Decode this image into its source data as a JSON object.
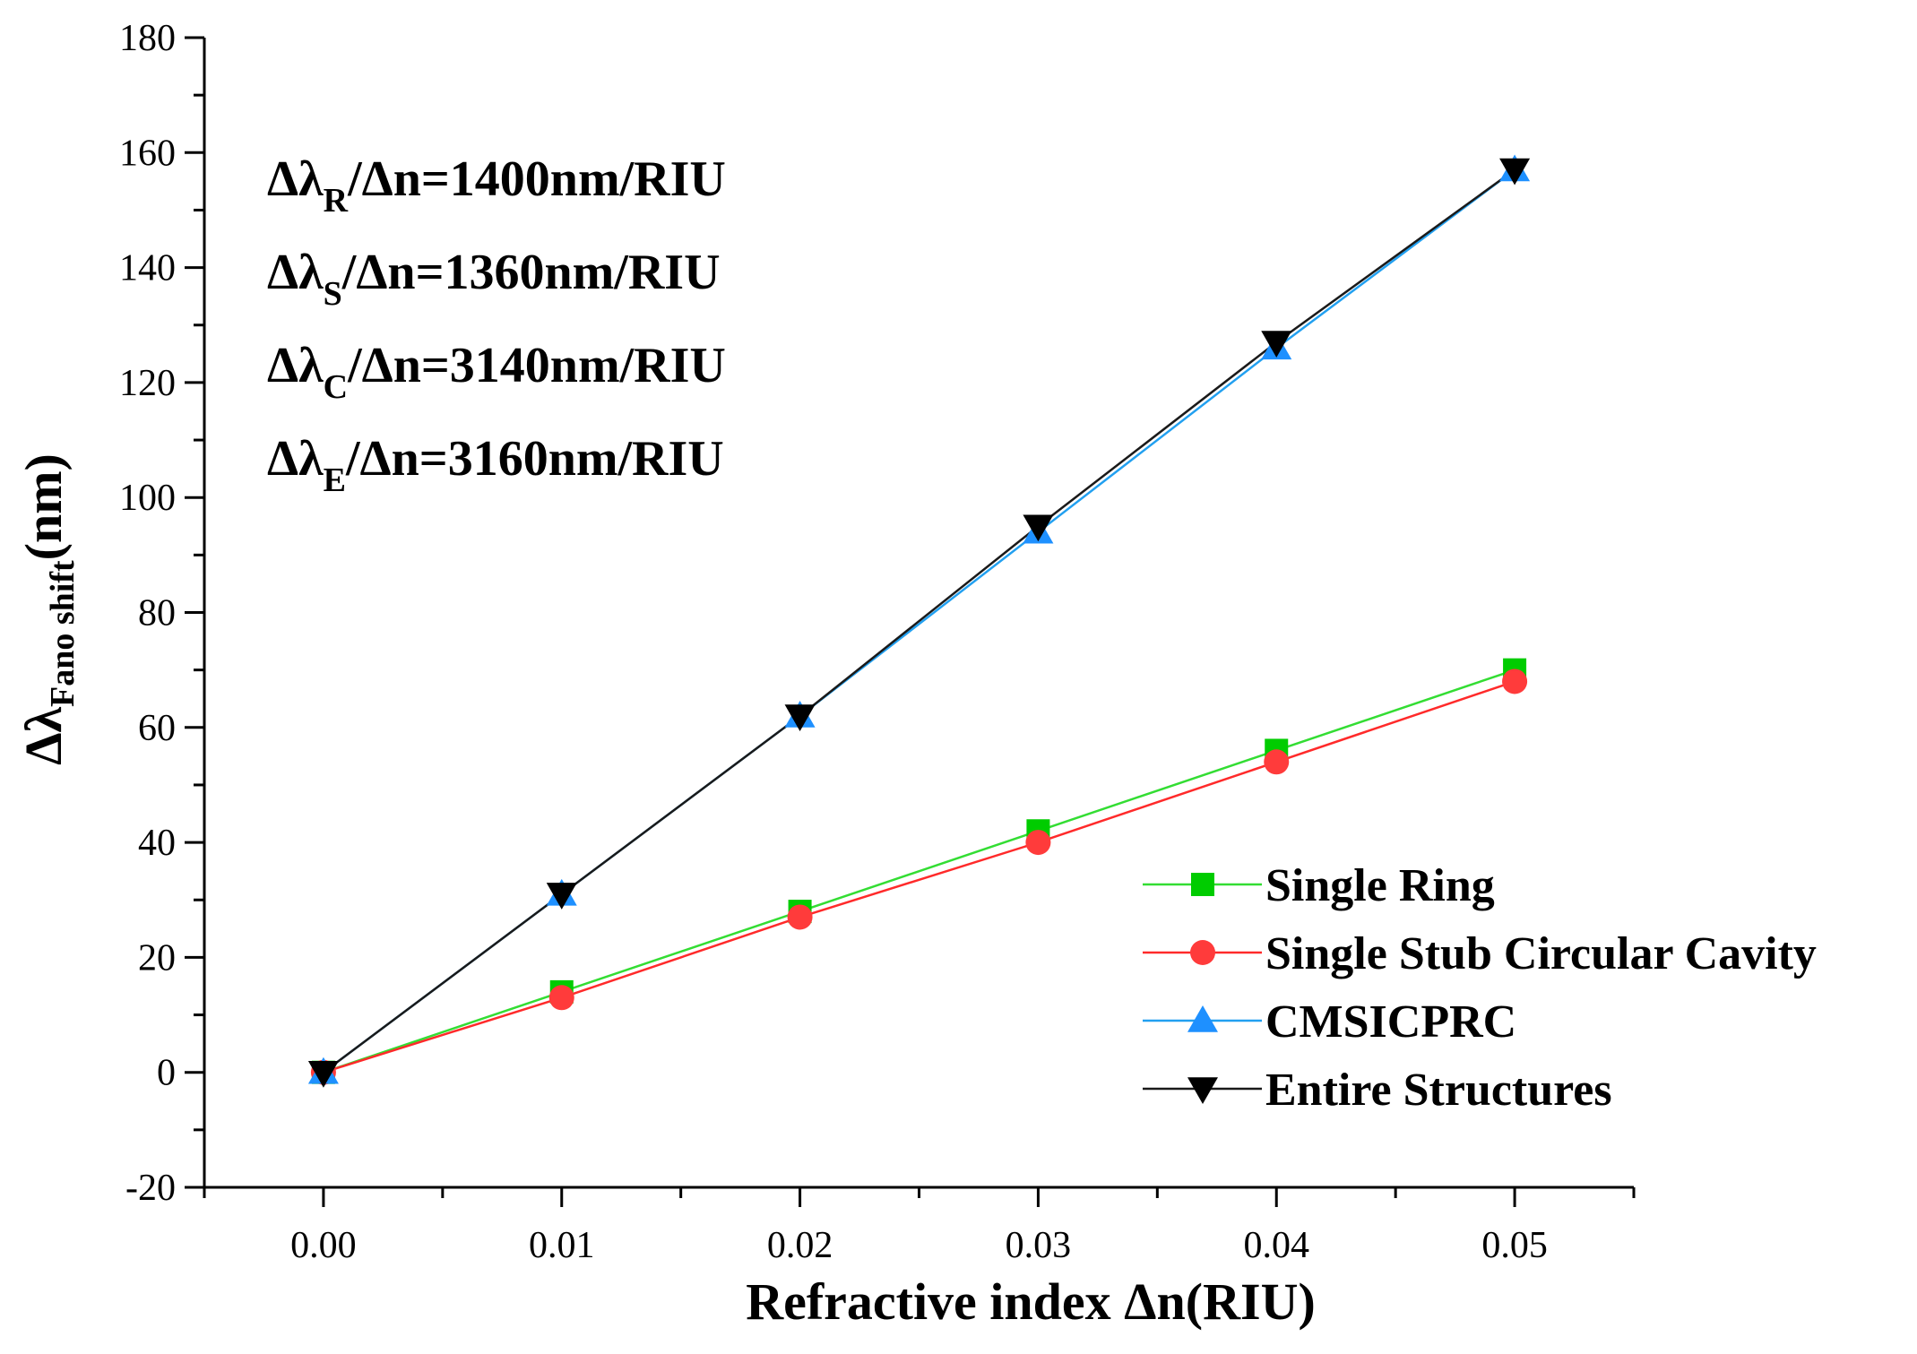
{
  "chart_data": {
    "type": "line",
    "title": "",
    "xlabel": "Refractive index Δn(RIU)",
    "ylabel": {
      "main": "Δλ",
      "sub": "Fano shift",
      "unit": "(nm)"
    },
    "xlim": [
      -0.005,
      0.055
    ],
    "ylim": [
      -20,
      180
    ],
    "x_ticks": [
      0.0,
      0.01,
      0.02,
      0.03,
      0.04,
      0.05
    ],
    "x_tick_labels": [
      "0.00",
      "0.01",
      "0.02",
      "0.03",
      "0.04",
      "0.05"
    ],
    "y_ticks": [
      -20,
      0,
      20,
      40,
      60,
      80,
      100,
      120,
      140,
      160,
      180
    ],
    "y_tick_labels": [
      "-20",
      "0",
      "20",
      "40",
      "60",
      "80",
      "100",
      "120",
      "140",
      "160",
      "180"
    ],
    "grid": false,
    "legend_position": "bottom-right",
    "x": [
      0.0,
      0.01,
      0.02,
      0.03,
      0.04,
      0.05
    ],
    "series": [
      {
        "name": "Single Ring",
        "marker": "square",
        "line_color": "#33dd33",
        "marker_color": "#00cc00",
        "values": [
          0,
          14,
          28,
          42,
          56,
          70
        ]
      },
      {
        "name": "Single Stub Circular Cavity",
        "marker": "circle",
        "line_color": "#ff2a2a",
        "marker_color": "#ff3b3b",
        "values": [
          0,
          13,
          27,
          40,
          54,
          68
        ]
      },
      {
        "name": "CMSICPRC",
        "marker": "triangle-up",
        "line_color": "#22a0f0",
        "marker_color": "#1e90ff",
        "values": [
          0,
          31,
          62,
          94,
          126,
          157
        ]
      },
      {
        "name": "Entire Structures",
        "marker": "triangle-down",
        "line_color": "#1a1a1a",
        "marker_color": "#000000",
        "values": [
          0,
          31,
          62,
          95,
          127,
          157
        ]
      }
    ],
    "annotations": [
      {
        "prefix": "Δλ",
        "sub": "R",
        "suffix": "/Δn=1400nm/RIU"
      },
      {
        "prefix": "Δλ",
        "sub": "S",
        "suffix": "/Δn=1360nm/RIU"
      },
      {
        "prefix": "Δλ",
        "sub": "C",
        "suffix": "/Δn=3140nm/RIU"
      },
      {
        "prefix": "Δλ",
        "sub": "E",
        "suffix": "/Δn=3160nm/RIU"
      }
    ]
  }
}
